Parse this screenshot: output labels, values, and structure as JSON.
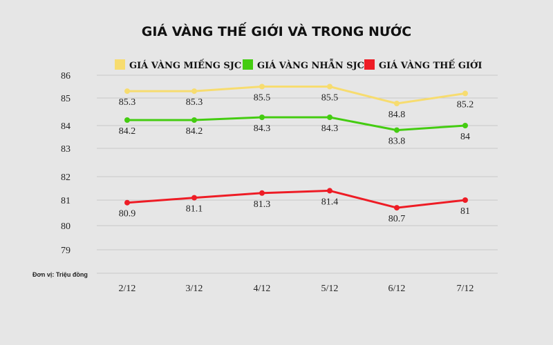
{
  "colors": {
    "background": "#e6e6e6",
    "gridline": "#c8c8c8"
  },
  "chart_data": {
    "type": "line",
    "title": "GIÁ VÀNG THẾ GIỚI VÀ TRONG NƯỚC",
    "unit_note": "Đơn vị: Triệu đồng",
    "categories": [
      "2/12",
      "3/12",
      "4/12",
      "5/12",
      "6/12",
      "7/12"
    ],
    "y_ticks": [
      "86",
      "85",
      "84",
      "83",
      "82",
      "81",
      "80",
      "79"
    ],
    "ylim": [
      78.6,
      86
    ],
    "y_scale": "broken",
    "grid": true,
    "legend_position": "top",
    "series": [
      {
        "name": "GIÁ VÀNG MIẾNG SJC",
        "color": "#f7dc6f",
        "values": [
          85.3,
          85.3,
          85.5,
          85.5,
          84.8,
          85.2
        ],
        "labels": [
          "85.3",
          "85.3",
          "85.5",
          "85.5",
          "84.8",
          "85.2"
        ]
      },
      {
        "name": "GIÁ VÀNG NHẪN SJC",
        "color": "#44cc11",
        "values": [
          84.2,
          84.2,
          84.3,
          84.3,
          83.8,
          84
        ],
        "labels": [
          "84.2",
          "84.2",
          "84.3",
          "84.3",
          "83.8",
          "84"
        ]
      },
      {
        "name": "GIÁ VÀNG THẾ GIỚI",
        "color": "#ee1c25",
        "values": [
          80.9,
          81.1,
          81.3,
          81.4,
          80.7,
          81
        ],
        "labels": [
          "80.9",
          "81.1",
          "81.3",
          "81.4",
          "80.7",
          "81"
        ]
      }
    ]
  }
}
